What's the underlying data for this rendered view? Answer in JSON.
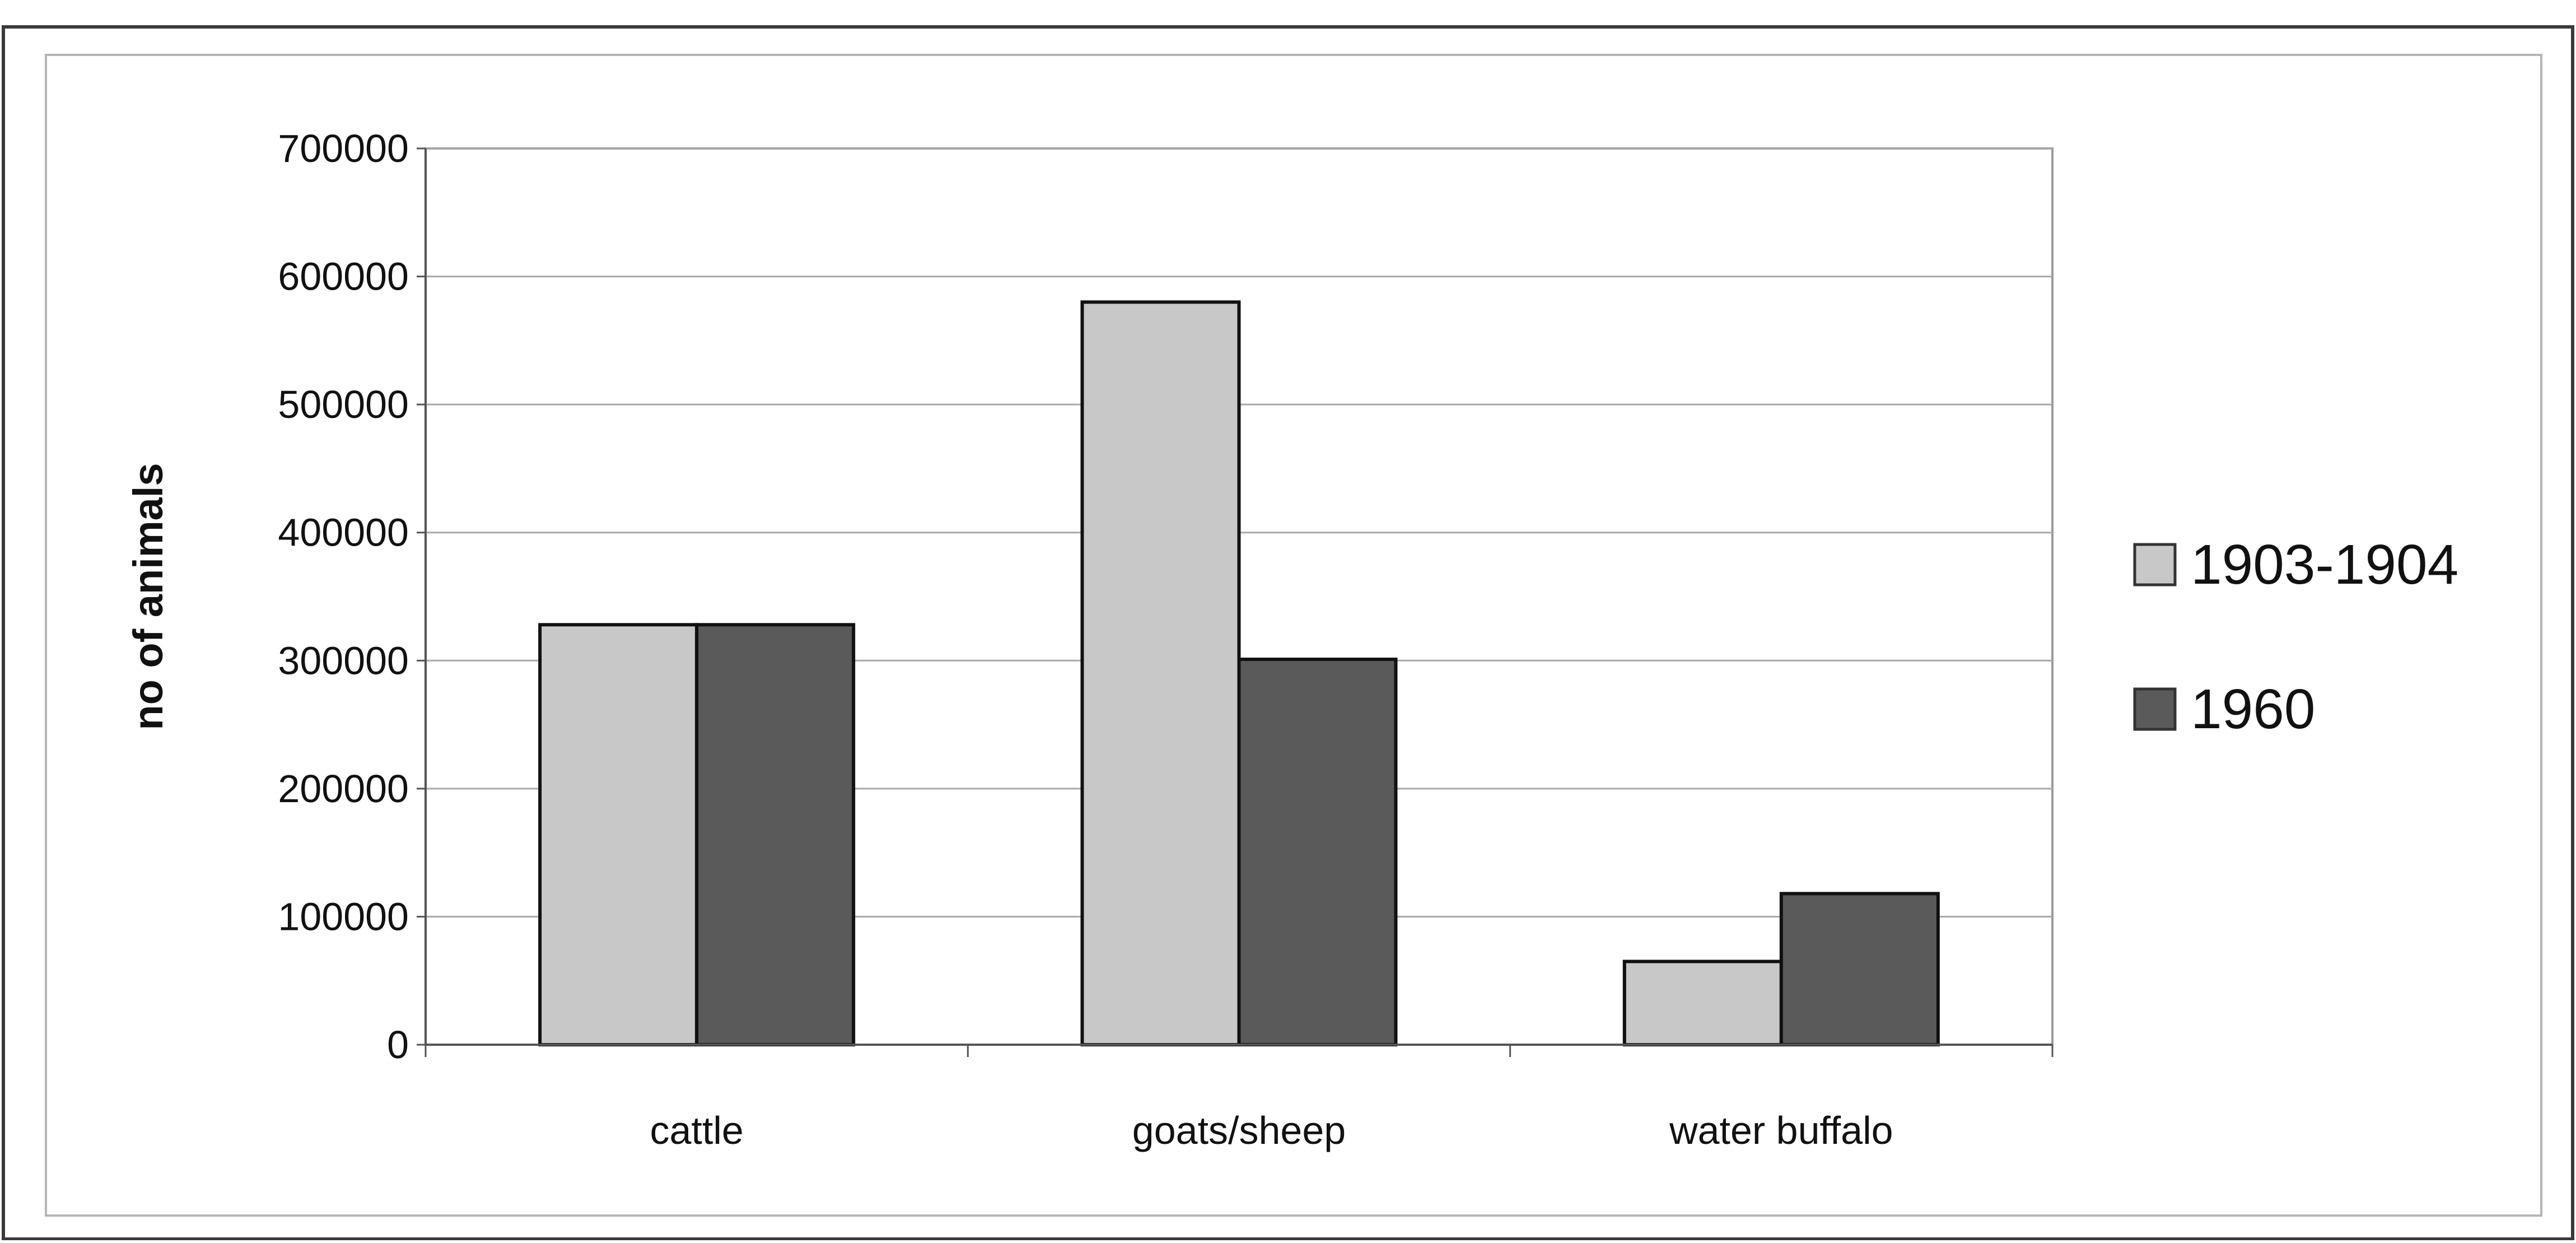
{
  "chart_data": {
    "type": "bar",
    "categories": [
      "cattle",
      "goats/sheep",
      "water buffalo"
    ],
    "series": [
      {
        "name": "1903-1904",
        "color": "#c8c8c8",
        "values": [
          328000,
          580000,
          65000
        ]
      },
      {
        "name": "1960",
        "color": "#5a5a5a",
        "values": [
          328000,
          301000,
          118000
        ]
      }
    ],
    "ylabel": "no of animals",
    "ylim": [
      0,
      700000
    ],
    "yticks": [
      "0",
      "100000",
      "200000",
      "300000",
      "400000",
      "500000",
      "600000",
      "700000"
    ],
    "grid": true,
    "legend": "right"
  }
}
